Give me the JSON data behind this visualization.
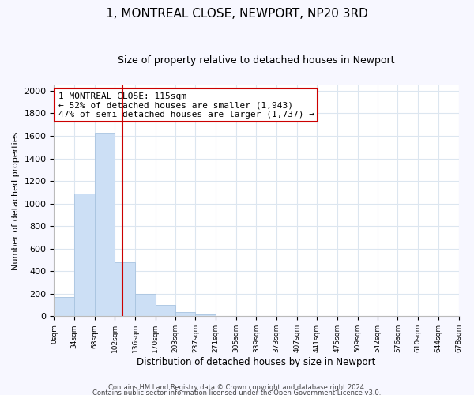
{
  "title": "1, MONTREAL CLOSE, NEWPORT, NP20 3RD",
  "subtitle": "Size of property relative to detached houses in Newport",
  "xlabel": "Distribution of detached houses by size in Newport",
  "ylabel": "Number of detached properties",
  "bar_color": "#ccdff5",
  "bar_edge_color": "#a8c4e0",
  "grid_color": "#dce6f0",
  "vline_color": "#cc0000",
  "vline_x": 115,
  "annotation_title": "1 MONTREAL CLOSE: 115sqm",
  "annotation_line1": "← 52% of detached houses are smaller (1,943)",
  "annotation_line2": "47% of semi-detached houses are larger (1,737) →",
  "bin_edges": [
    0,
    34,
    68,
    102,
    136,
    170,
    203,
    237,
    271,
    305,
    339,
    373,
    407,
    441,
    475,
    509,
    542,
    576,
    610,
    644,
    678
  ],
  "bin_counts": [
    170,
    1085,
    1630,
    480,
    200,
    100,
    38,
    18,
    0,
    0,
    0,
    0,
    0,
    0,
    0,
    0,
    0,
    0,
    0,
    0
  ],
  "ylim": [
    0,
    2050
  ],
  "yticks": [
    0,
    200,
    400,
    600,
    800,
    1000,
    1200,
    1400,
    1600,
    1800,
    2000
  ],
  "tick_labels": [
    "0sqm",
    "34sqm",
    "68sqm",
    "102sqm",
    "136sqm",
    "170sqm",
    "203sqm",
    "237sqm",
    "271sqm",
    "305sqm",
    "339sqm",
    "373sqm",
    "407sqm",
    "441sqm",
    "475sqm",
    "509sqm",
    "542sqm",
    "576sqm",
    "610sqm",
    "644sqm",
    "678sqm"
  ],
  "footer_line1": "Contains HM Land Registry data © Crown copyright and database right 2024.",
  "footer_line2": "Contains public sector information licensed under the Open Government Licence v3.0.",
  "background_color": "#f7f7ff",
  "plot_bg_color": "#ffffff",
  "title_fontsize": 11,
  "subtitle_fontsize": 9,
  "ylabel_fontsize": 8,
  "xlabel_fontsize": 8.5,
  "annotation_fontsize": 8,
  "ytick_fontsize": 8,
  "xtick_fontsize": 6.5
}
